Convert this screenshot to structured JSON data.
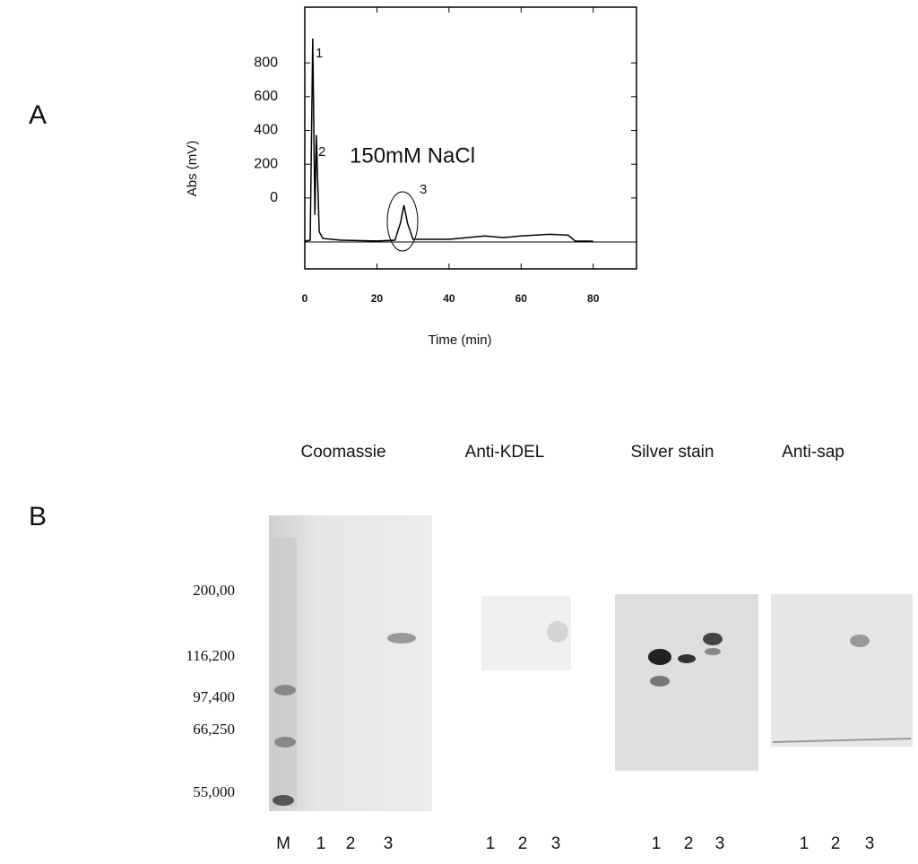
{
  "panel_labels": [
    "A",
    "B"
  ],
  "chart_data": {
    "type": "line",
    "x_label": "Time (min)",
    "y_label": "Abs (mV)",
    "annotations": [
      "1",
      "2",
      "3",
      "150mM NaCl"
    ],
    "x": [
      0,
      1.5,
      2.2,
      2.8,
      3.2,
      4,
      5,
      10,
      20,
      25,
      26.5,
      27.5,
      28.5,
      30,
      40,
      50,
      55,
      60,
      68,
      73,
      75,
      80
    ],
    "values": [
      -256,
      -250,
      944,
      -100,
      373,
      -200,
      -240,
      -250,
      -255,
      -250,
      -150,
      -43,
      -150,
      -245,
      -245,
      -225,
      -235,
      -225,
      -215,
      -220,
      -255,
      -256
    ],
    "color": "#000000",
    "xlim": [
      0,
      92
    ],
    "ylim": [
      -420,
      1130
    ],
    "xticks": [
      0,
      20,
      40,
      60,
      80
    ],
    "yticks": [
      0,
      200,
      400,
      600,
      800
    ]
  },
  "gels": {
    "headers": [
      "Coomassie",
      "Anti-KDEL",
      "Silver stain",
      "Anti-sap"
    ],
    "markers": [
      "200,00",
      "116,200",
      "97,400",
      "66,250",
      "55,000"
    ],
    "lanes": [
      [
        "M",
        "1",
        "2",
        "3"
      ],
      [
        "1",
        "2",
        "3"
      ],
      [
        "1",
        "2",
        "3"
      ],
      [
        "1",
        "2",
        "3"
      ]
    ]
  }
}
